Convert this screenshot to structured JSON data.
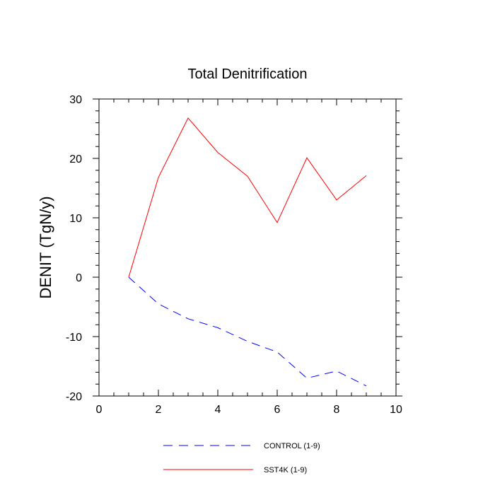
{
  "chart_data": {
    "type": "line",
    "title": "Total Denitrification",
    "xlabel": "",
    "ylabel": "DENIT  (TgN/y)",
    "xlim": [
      0,
      10
    ],
    "ylim": [
      -20,
      30
    ],
    "x_ticks": [
      0,
      2,
      4,
      6,
      8,
      10
    ],
    "y_ticks": [
      30,
      20,
      10,
      0,
      -10,
      -20
    ],
    "x_tick_labels": [
      "0",
      "2",
      "4",
      "6",
      "8",
      "10"
    ],
    "y_tick_labels": [
      "30",
      "20",
      "10",
      "0",
      "-10",
      "-20"
    ],
    "grid": false,
    "legend_position": "bottom",
    "series": [
      {
        "name": "CONTROL (1-9)",
        "color": "#0000ff",
        "style": "dashed",
        "x": [
          1,
          2,
          3,
          4,
          5,
          6,
          7,
          8,
          9
        ],
        "values": [
          0,
          -4.5,
          -7,
          -8.5,
          -10.8,
          -12.6,
          -17,
          -15.8,
          -18.3
        ]
      },
      {
        "name": "SST4K (1-9)",
        "color": "#ff0000",
        "style": "solid",
        "x": [
          1,
          2,
          3,
          4,
          5,
          6,
          7,
          8,
          9
        ],
        "values": [
          0,
          16.8,
          26.8,
          21,
          17,
          9.2,
          20.1,
          13,
          17.1
        ]
      }
    ]
  }
}
